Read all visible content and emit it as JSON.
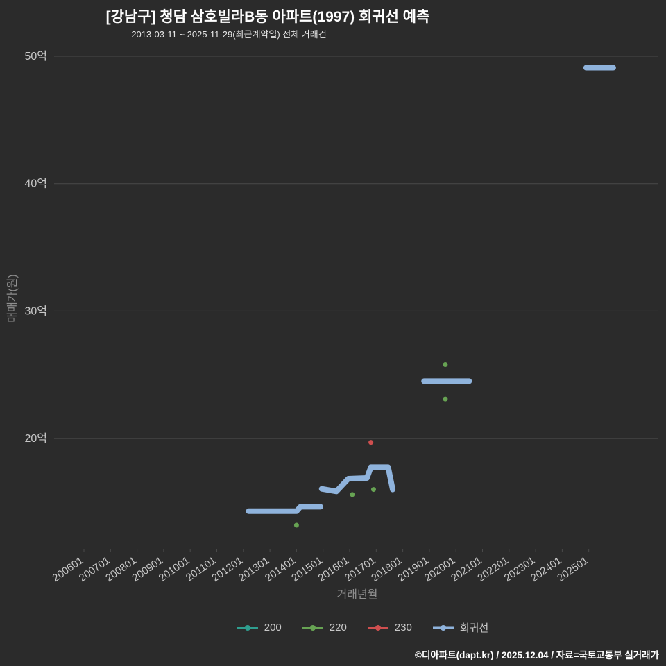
{
  "footer": {
    "credit": "©디아파트(dapt.kr) / 2025.12.04 / 자료=국토교통부 실거래가"
  },
  "chart_data": {
    "type": "scatter",
    "title": "[강남구] 청담 삼호빌라B동 아파트(1997) 회귀선 예측",
    "subtitle": "2013-03-11 ~ 2025-11-29(최근계약일) 전체 거래건",
    "background_color": "#2b2b2b",
    "gridline_color": "#4a4a4a",
    "grid": "horizontal-only",
    "legend_position": "bottom-center",
    "x_axis": {
      "title": "거래년월",
      "tick_labels": [
        "200601",
        "200701",
        "200801",
        "200901",
        "201001",
        "201101",
        "201201",
        "201301",
        "201401",
        "201501",
        "201601",
        "201701",
        "201801",
        "201901",
        "202001",
        "202101",
        "202201",
        "202301",
        "202401",
        "202501"
      ]
    },
    "y_axis": {
      "title": "매매가(원)",
      "unit": "억원",
      "ticks": [
        {
          "label": "20억",
          "value": 20
        },
        {
          "label": "30억",
          "value": 30
        },
        {
          "label": "40억",
          "value": 40
        },
        {
          "label": "50억",
          "value": 50
        }
      ],
      "range": [
        11.4,
        51.5
      ]
    },
    "series": [
      {
        "name": "200",
        "color": "#2f9e8f",
        "mode": "markers",
        "points": []
      },
      {
        "name": "220",
        "color": "#67a353",
        "mode": "markers",
        "points": [
          {
            "x": 2014.0,
            "y": 13.2
          },
          {
            "x": 2016.1,
            "y": 15.6
          },
          {
            "x": 2016.9,
            "y": 16.0
          },
          {
            "x": 2019.6,
            "y": 23.1
          },
          {
            "x": 2019.6,
            "y": 25.8
          }
        ]
      },
      {
        "name": "230",
        "color": "#cf4f4f",
        "mode": "markers",
        "points": [
          {
            "x": 2016.8,
            "y": 19.7
          }
        ]
      },
      {
        "name": "회귀선",
        "color": "#8fb3dc",
        "mode": "line",
        "line_width": 8,
        "segments": [
          [
            {
              "x": 2012.2,
              "y": 14.3
            },
            {
              "x": 2014.0,
              "y": 14.3
            },
            {
              "x": 2014.15,
              "y": 14.65
            },
            {
              "x": 2014.9,
              "y": 14.65
            }
          ],
          [
            {
              "x": 2014.95,
              "y": 16.05
            },
            {
              "x": 2015.5,
              "y": 15.85
            },
            {
              "x": 2015.95,
              "y": 16.85
            },
            {
              "x": 2016.65,
              "y": 16.9
            },
            {
              "x": 2016.8,
              "y": 17.75
            },
            {
              "x": 2017.45,
              "y": 17.75
            },
            {
              "x": 2017.62,
              "y": 16.0
            }
          ],
          [
            {
              "x": 2018.8,
              "y": 24.5
            },
            {
              "x": 2020.5,
              "y": 24.5
            }
          ],
          [
            {
              "x": 2024.9,
              "y": 49.1
            },
            {
              "x": 2025.92,
              "y": 49.1
            }
          ]
        ]
      }
    ]
  }
}
